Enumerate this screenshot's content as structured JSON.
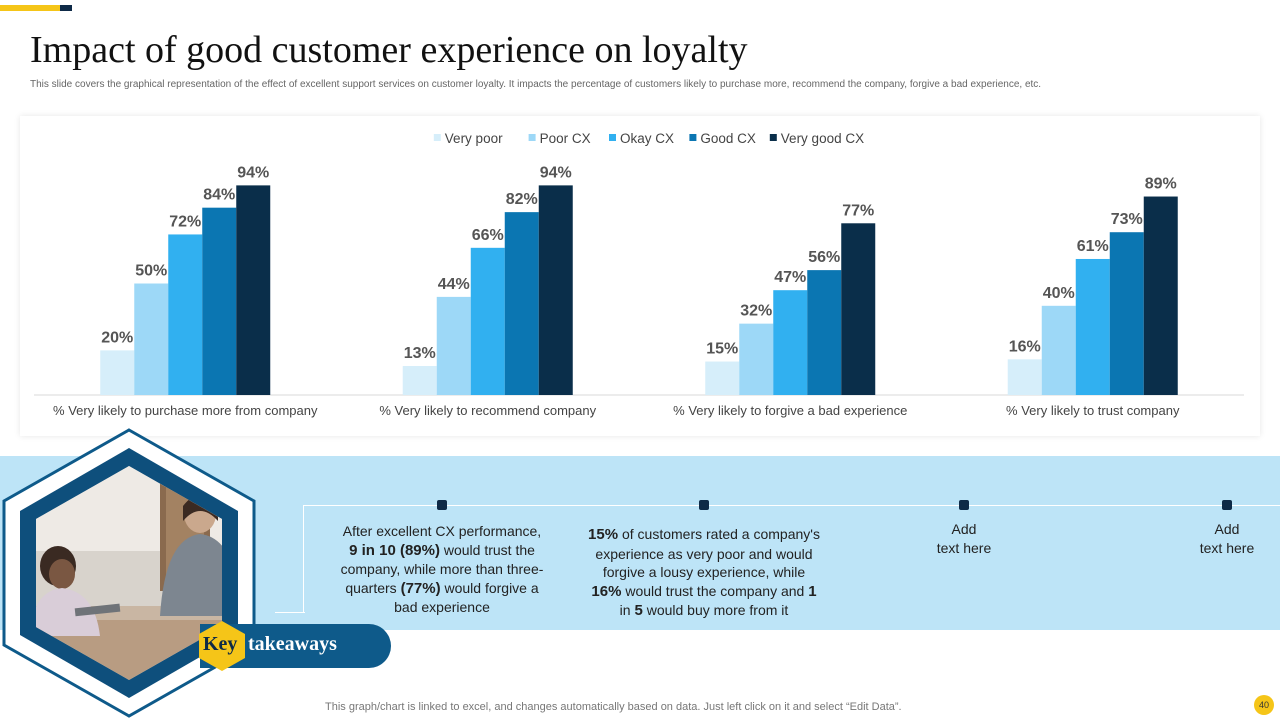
{
  "slide": {
    "title": "Impact of good customer experience on loyalty",
    "subtitle": "This slide covers the graphical representation of the effect of excellent support services on customer loyalty. It impacts the percentage of customers likely to purchase more, recommend the company, forgive a bad experience, etc.",
    "footer": "This graph/chart is linked to excel, and changes automatically based on data. Just left click on it and select “Edit Data”.",
    "page_number": "40"
  },
  "colors": {
    "accent_yellow": "#f5c518",
    "navy": "#0e2a47",
    "band_blue": "#bde4f7",
    "pill_blue": "#0e5a8a"
  },
  "chart_data": {
    "type": "bar",
    "title": "",
    "xlabel": "",
    "ylabel": "",
    "ylim": [
      0,
      100
    ],
    "grid": false,
    "legend_position": "top-center",
    "value_suffix": "%",
    "categories": [
      "% Very likely to purchase more from company",
      "% Very likely to recommend company",
      "% Very likely to forgive a bad experience",
      "% Very likely to trust company"
    ],
    "series": [
      {
        "name": "Very poor",
        "color": "#d6eefa",
        "values": [
          20,
          13,
          15,
          16
        ]
      },
      {
        "name": "Poor CX",
        "color": "#9dd8f7",
        "values": [
          50,
          44,
          32,
          40
        ]
      },
      {
        "name": "Okay CX",
        "color": "#31b0f0",
        "values": [
          72,
          66,
          47,
          61
        ]
      },
      {
        "name": "Good CX",
        "color": "#0b76b2",
        "values": [
          84,
          82,
          56,
          73
        ]
      },
      {
        "name": "Very good CX",
        "color": "#0a2e4a",
        "values": [
          94,
          94,
          77,
          89
        ]
      }
    ]
  },
  "takeaways": {
    "heading_key": "Key",
    "heading_rest": "takeaways",
    "item1": {
      "l1": "After excellent CX performance,",
      "l2_bold": "9 in 10 (89%)",
      "l2_rest": " would trust the",
      "l3": "company, while more than three-",
      "l4_pre": "quarters ",
      "l4_bold": "(77%)",
      "l4_rest": " would forgive a",
      "l5": "bad experience"
    },
    "item2": {
      "l1_bold": "15%",
      "l1_rest": " of customers rated a company's",
      "l2": "experience as very poor and would",
      "l3": "forgive a lousy experience, while",
      "l4_bold": "16%",
      "l4_rest": " would trust the company and ",
      "l4_bold2": "1",
      "l5_pre": "in ",
      "l5_bold": "5",
      "l5_rest": " would buy more from it"
    },
    "item3": {
      "l1": "Add",
      "l2": "text here"
    },
    "item4": {
      "l1": "Add",
      "l2": "text here"
    }
  }
}
